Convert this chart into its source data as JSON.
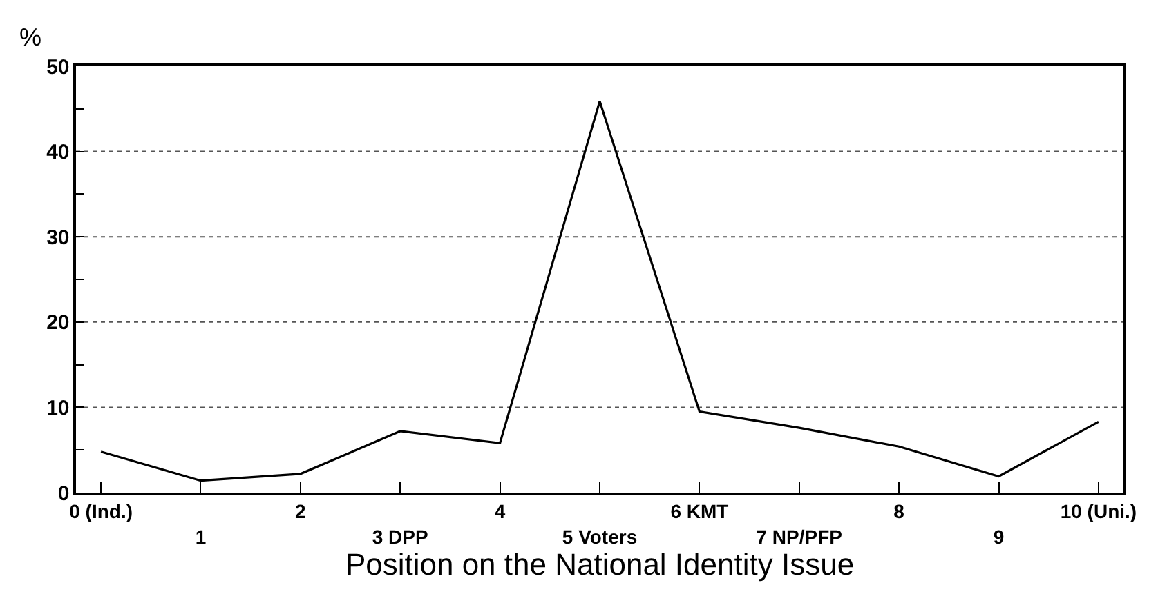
{
  "chart_data": {
    "type": "line",
    "xlabel": "Position on the National Identity Issue",
    "ylabel": "%",
    "categories": [
      "0 (Ind.)",
      "1",
      "2",
      "3 DPP",
      "4",
      "5 Voters",
      "6 KMT",
      "7 NP/PFP",
      "8",
      "9",
      "10 (Uni.)"
    ],
    "series": [
      {
        "color": "#000000",
        "values": [
          4.8,
          1.4,
          2.2,
          7.2,
          5.8,
          45.9,
          9.5,
          7.6,
          5.4,
          1.9,
          8.3
        ]
      }
    ],
    "ylim": [
      0,
      50
    ],
    "yticks": [
      0,
      {
        "value": 5,
        "label": null
      },
      10,
      {
        "value": 15,
        "label": null
      },
      20,
      {
        "value": 25,
        "label": null
      },
      30,
      {
        "value": 35,
        "label": null
      },
      40,
      {
        "value": 45,
        "label": null
      },
      50
    ],
    "grid": "y",
    "marker": "none",
    "line_style": "solid"
  }
}
